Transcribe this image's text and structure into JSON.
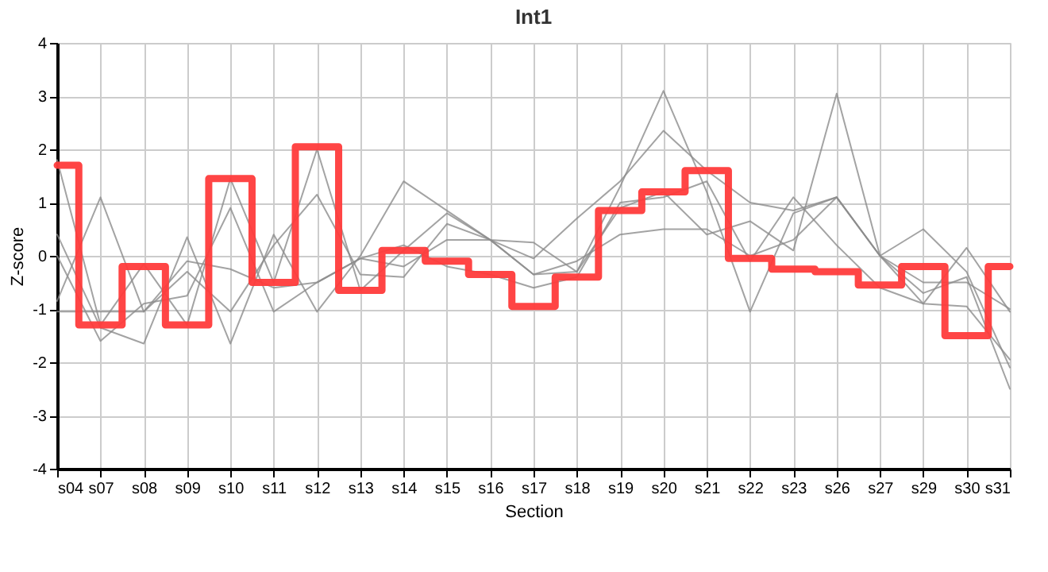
{
  "chart_data": {
    "type": "line",
    "title": "Int1",
    "xlabel": "Section",
    "ylabel": "Z-score",
    "categories": [
      "s04",
      "s07",
      "s08",
      "s09",
      "s10",
      "s11",
      "s12",
      "s13",
      "s14",
      "s15",
      "s16",
      "s17",
      "s18",
      "s19",
      "s20",
      "s21",
      "s22",
      "s23",
      "s26",
      "s27",
      "s29",
      "s30",
      "s31"
    ],
    "series": [
      {
        "color": "#8c8c8c",
        "values": [
          1.8,
          -1.3,
          -0.15,
          -1.3,
          1.45,
          -0.5,
          2.0,
          -0.65,
          0.1,
          0.8,
          0.3,
          0.25,
          -0.3,
          1.3,
          3.1,
          1.2,
          -1.05,
          0.8,
          1.1,
          0.0,
          -0.7,
          -0.4,
          -2.5
        ]
      },
      {
        "color": "#8c8c8c",
        "values": [
          0.4,
          -1.35,
          -1.65,
          0.35,
          -1.65,
          0.4,
          -1.05,
          0.0,
          1.4,
          0.85,
          0.3,
          -0.05,
          0.7,
          1.4,
          2.35,
          1.6,
          1.0,
          0.85,
          1.1,
          0.0,
          -0.9,
          0.15,
          -1.05
        ]
      },
      {
        "color": "#8c8c8c",
        "values": [
          -0.85,
          1.1,
          -1.05,
          -0.3,
          -1.05,
          0.2,
          1.15,
          -0.35,
          -0.4,
          0.6,
          0.3,
          -0.35,
          -0.1,
          0.4,
          0.5,
          0.5,
          0.0,
          0.3,
          1.1,
          0.0,
          0.5,
          -0.3,
          -2.1
        ]
      },
      {
        "color": "#8c8c8c",
        "values": [
          -1.05,
          -1.05,
          -1.05,
          -0.1,
          -0.25,
          -0.6,
          -0.5,
          -0.05,
          0.2,
          -0.2,
          -0.35,
          -0.6,
          -0.4,
          1.0,
          1.1,
          1.4,
          -0.1,
          1.1,
          0.2,
          -0.6,
          -0.9,
          -0.95,
          -1.95
        ]
      },
      {
        "color": "#8c8c8c",
        "values": [
          0.0,
          -1.6,
          -0.9,
          -0.75,
          0.9,
          -1.05,
          -0.5,
          -0.05,
          -0.2,
          0.3,
          0.3,
          -0.35,
          -0.3,
          0.9,
          1.2,
          0.4,
          0.65,
          0.1,
          3.05,
          0.0,
          -0.5,
          -0.5,
          -1.0
        ]
      },
      {
        "type": "step",
        "color": "#ff3b3b",
        "values": [
          1.7,
          -1.3,
          -0.2,
          -1.3,
          1.45,
          -0.5,
          2.05,
          -0.65,
          0.1,
          -0.1,
          -0.35,
          -0.95,
          -0.4,
          0.85,
          1.2,
          1.6,
          -0.05,
          -0.25,
          -0.3,
          -0.55,
          -0.2,
          -1.5,
          -0.2
        ]
      }
    ],
    "ylim": [
      -4,
      4
    ],
    "yticks": [
      -4,
      -3,
      -2,
      -1,
      0,
      1,
      2,
      3,
      4
    ],
    "grid": true
  }
}
